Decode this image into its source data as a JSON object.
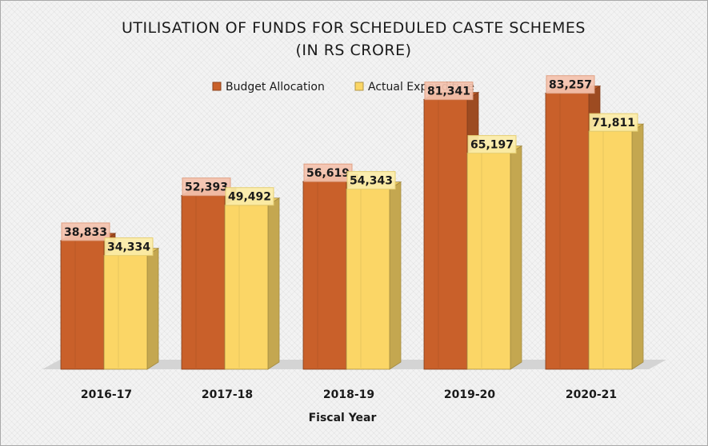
{
  "chart_data": {
    "type": "bar",
    "title": "UTILISATION OF FUNDS FOR SCHEDULED CASTE SCHEMES",
    "subtitle": "(IN RS CRORE)",
    "xlabel": "Fiscal Year",
    "ylabel": "",
    "categories": [
      "2016-17",
      "2017-18",
      "2018-19",
      "2019-20",
      "2020-21"
    ],
    "series": [
      {
        "name": "Budget Allocation",
        "values": [
          38833,
          52393,
          56619,
          81341,
          83257
        ],
        "labels": [
          "38,833",
          "52,393",
          "56,619",
          "81,341",
          "83,257"
        ],
        "color": "#c9602a"
      },
      {
        "name": "Actual Expenditure",
        "values": [
          34334,
          49492,
          54343,
          65197,
          71811
        ],
        "labels": [
          "34,334",
          "49,492",
          "54,343",
          "65,197",
          "71,811"
        ],
        "color": "#fbd666"
      }
    ],
    "ylim": [
      0,
      95000
    ],
    "grid": false,
    "legend_position": "top"
  }
}
